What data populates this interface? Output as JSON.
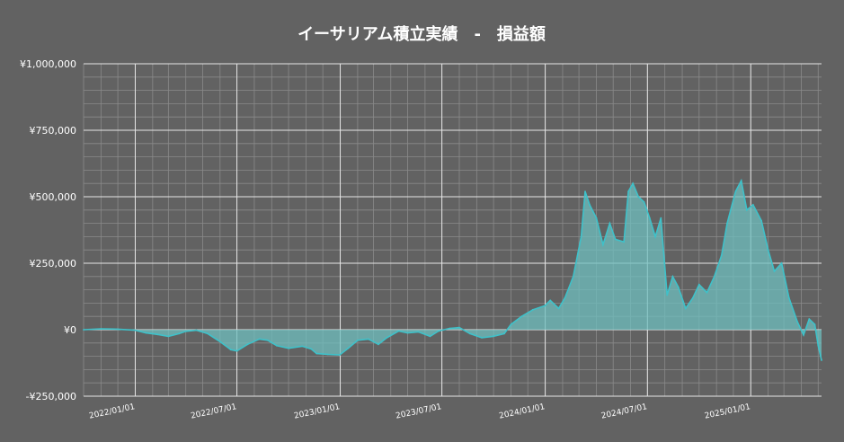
{
  "chart_data": {
    "type": "area",
    "title": "イーサリアム積立実績　-　損益額",
    "xlabel": "",
    "ylabel": "",
    "ylim": [
      -250000,
      1000000
    ],
    "xlim": [
      "2021-10-01",
      "2025-05-07"
    ],
    "grid": true,
    "colors": {
      "background": "#626262",
      "line": "#3fc1c9",
      "fill": "#6fbfbf",
      "grid_major": "#e6e6e6",
      "grid_minor": "#8a8a8a"
    },
    "y_ticks": [
      {
        "value": -250000,
        "label": "-¥250,000"
      },
      {
        "value": 0,
        "label": "¥0"
      },
      {
        "value": 250000,
        "label": "¥250,000"
      },
      {
        "value": 500000,
        "label": "¥500,000"
      },
      {
        "value": 750000,
        "label": "¥750,000"
      },
      {
        "value": 1000000,
        "label": "¥1,000,000"
      }
    ],
    "x_ticks": [
      {
        "value": "2022-01-01",
        "label": "2022/01/01"
      },
      {
        "value": "2022-07-01",
        "label": "2022/07/01"
      },
      {
        "value": "2023-01-01",
        "label": "2023/01/01"
      },
      {
        "value": "2023-07-01",
        "label": "2023/07/01"
      },
      {
        "value": "2024-01-01",
        "label": "2024/01/01"
      },
      {
        "value": "2024-07-01",
        "label": "2024/07/01"
      },
      {
        "value": "2025-01-01",
        "label": "2025/01/01"
      }
    ],
    "series": [
      {
        "points": [
          [
            "2021-10-01",
            0
          ],
          [
            "2021-11-01",
            3000
          ],
          [
            "2021-12-01",
            2000
          ],
          [
            "2022-01-01",
            -2000
          ],
          [
            "2022-01-20",
            -12000
          ],
          [
            "2022-02-10",
            -18000
          ],
          [
            "2022-03-01",
            -25000
          ],
          [
            "2022-03-20",
            -15000
          ],
          [
            "2022-04-01",
            -6000
          ],
          [
            "2022-04-20",
            -2000
          ],
          [
            "2022-05-10",
            -15000
          ],
          [
            "2022-06-01",
            -45000
          ],
          [
            "2022-06-20",
            -75000
          ],
          [
            "2022-07-01",
            -80000
          ],
          [
            "2022-07-20",
            -55000
          ],
          [
            "2022-08-10",
            -35000
          ],
          [
            "2022-08-25",
            -40000
          ],
          [
            "2022-09-10",
            -60000
          ],
          [
            "2022-10-01",
            -70000
          ],
          [
            "2022-10-25",
            -62000
          ],
          [
            "2022-11-10",
            -72000
          ],
          [
            "2022-11-20",
            -90000
          ],
          [
            "2022-12-10",
            -93000
          ],
          [
            "2022-12-31",
            -95000
          ],
          [
            "2023-01-15",
            -70000
          ],
          [
            "2023-02-01",
            -40000
          ],
          [
            "2023-02-20",
            -35000
          ],
          [
            "2023-03-10",
            -55000
          ],
          [
            "2023-03-25",
            -30000
          ],
          [
            "2023-04-15",
            -5000
          ],
          [
            "2023-05-01",
            -12000
          ],
          [
            "2023-05-20",
            -8000
          ],
          [
            "2023-06-10",
            -25000
          ],
          [
            "2023-06-25",
            -5000
          ],
          [
            "2023-07-15",
            5000
          ],
          [
            "2023-08-01",
            8000
          ],
          [
            "2023-08-20",
            -15000
          ],
          [
            "2023-09-10",
            -30000
          ],
          [
            "2023-09-30",
            -25000
          ],
          [
            "2023-10-20",
            -15000
          ],
          [
            "2023-11-01",
            20000
          ],
          [
            "2023-11-20",
            50000
          ],
          [
            "2023-12-10",
            75000
          ],
          [
            "2023-12-31",
            90000
          ],
          [
            "2024-01-10",
            110000
          ],
          [
            "2024-01-25",
            80000
          ],
          [
            "2024-02-05",
            120000
          ],
          [
            "2024-02-20",
            200000
          ],
          [
            "2024-03-05",
            350000
          ],
          [
            "2024-03-12",
            520000
          ],
          [
            "2024-03-20",
            470000
          ],
          [
            "2024-04-01",
            420000
          ],
          [
            "2024-04-13",
            320000
          ],
          [
            "2024-04-25",
            400000
          ],
          [
            "2024-05-05",
            340000
          ],
          [
            "2024-05-20",
            330000
          ],
          [
            "2024-05-28",
            520000
          ],
          [
            "2024-06-05",
            550000
          ],
          [
            "2024-06-15",
            500000
          ],
          [
            "2024-06-25",
            480000
          ],
          [
            "2024-07-05",
            420000
          ],
          [
            "2024-07-15",
            350000
          ],
          [
            "2024-07-25",
            420000
          ],
          [
            "2024-08-05",
            130000
          ],
          [
            "2024-08-15",
            200000
          ],
          [
            "2024-08-25",
            160000
          ],
          [
            "2024-09-07",
            80000
          ],
          [
            "2024-09-20",
            120000
          ],
          [
            "2024-10-01",
            170000
          ],
          [
            "2024-10-15",
            140000
          ],
          [
            "2024-10-28",
            200000
          ],
          [
            "2024-11-10",
            280000
          ],
          [
            "2024-11-20",
            400000
          ],
          [
            "2024-12-05",
            520000
          ],
          [
            "2024-12-15",
            560000
          ],
          [
            "2024-12-25",
            450000
          ],
          [
            "2025-01-05",
            470000
          ],
          [
            "2025-01-20",
            410000
          ],
          [
            "2025-02-01",
            300000
          ],
          [
            "2025-02-12",
            220000
          ],
          [
            "2025-02-25",
            250000
          ],
          [
            "2025-03-10",
            120000
          ],
          [
            "2025-03-25",
            30000
          ],
          [
            "2025-04-05",
            -20000
          ],
          [
            "2025-04-15",
            40000
          ],
          [
            "2025-04-25",
            20000
          ],
          [
            "2025-05-01",
            -60000
          ],
          [
            "2025-05-07",
            -115000
          ]
        ]
      }
    ]
  }
}
